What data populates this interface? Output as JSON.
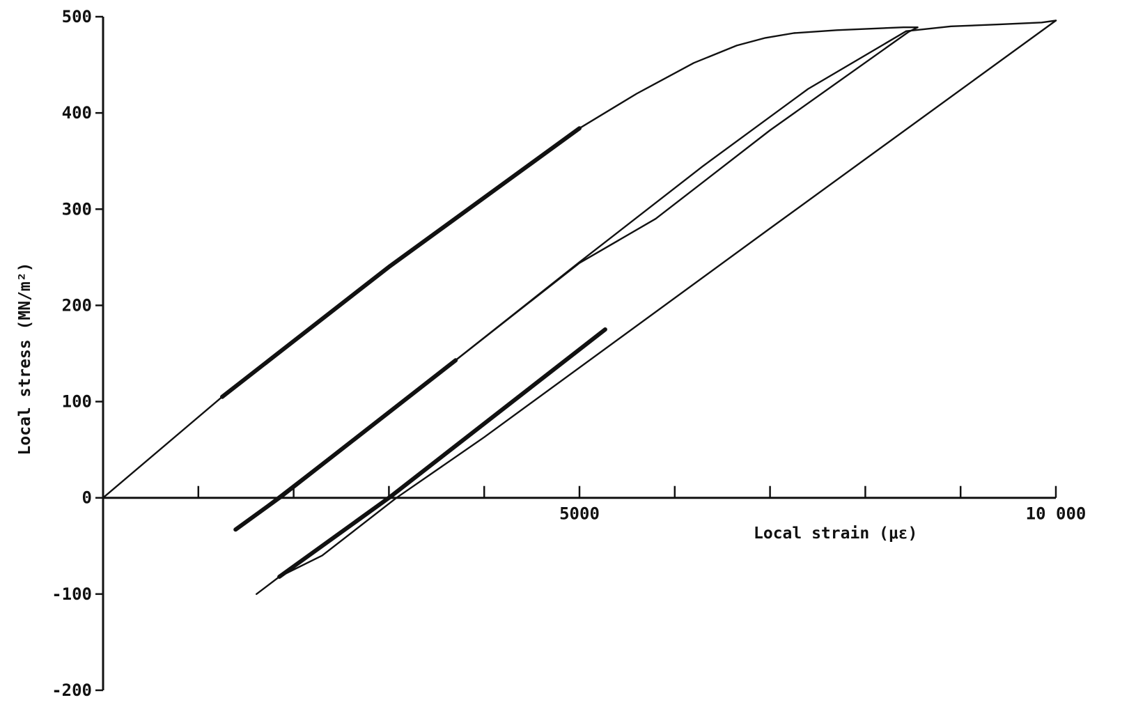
{
  "chart_data": {
    "type": "line",
    "title": "",
    "xlabel": "Local strain (με)",
    "ylabel": "Local stress (MN/m²)",
    "xlim": [
      0,
      10000
    ],
    "ylim": [
      -200,
      500
    ],
    "x_tick_labels": [
      {
        "value": 5000,
        "label": "5000"
      },
      {
        "value": 10000,
        "label": "10 000"
      }
    ],
    "x_minor_ticks": [
      1000,
      2000,
      3000,
      4000,
      5000,
      6000,
      7000,
      8000,
      9000,
      10000
    ],
    "y_tick_labels": [
      {
        "value": 500,
        "label": "500"
      },
      {
        "value": 400,
        "label": "400"
      },
      {
        "value": 300,
        "label": "300"
      },
      {
        "value": 200,
        "label": "200"
      },
      {
        "value": 100,
        "label": "100"
      },
      {
        "value": 0,
        "label": "0"
      },
      {
        "value": -100,
        "label": "-100"
      },
      {
        "value": -200,
        "label": "-200"
      }
    ],
    "grid": false,
    "legend": "none",
    "series": [
      {
        "weight": "thin",
        "x": [
          0,
          1250
        ],
        "y": [
          0,
          105
        ]
      },
      {
        "weight": "heavy",
        "x": [
          1250,
          3000,
          5000
        ],
        "y": [
          105,
          240,
          384
        ]
      },
      {
        "weight": "thin",
        "x": [
          5000,
          5600,
          6200,
          6650,
          6950,
          7250,
          7700,
          8400,
          8550,
          8450
        ],
        "y": [
          384,
          420,
          452,
          470,
          478,
          483,
          486,
          489,
          489,
          484
        ]
      },
      {
        "weight": "thin",
        "x": [
          8450,
          7000,
          5800,
          5000,
          3700
        ],
        "y": [
          484,
          382,
          290,
          244,
          143
        ]
      },
      {
        "weight": "heavy",
        "x": [
          3700,
          1850,
          1390
        ],
        "y": [
          143,
          0,
          -33
        ]
      },
      {
        "weight": "thin",
        "x": [
          1390,
          3700,
          5000,
          6300,
          7400,
          8430
        ],
        "y": [
          -33,
          143,
          245,
          345,
          425,
          485
        ]
      },
      {
        "weight": "thin",
        "x": [
          8430,
          8900,
          9400,
          9850,
          10000
        ],
        "y": [
          485,
          490,
          492,
          494,
          496
        ]
      },
      {
        "weight": "thin",
        "x": [
          10000,
          7000,
          4000,
          3080,
          2300,
          1850
        ],
        "y": [
          496,
          280,
          63,
          0,
          -60,
          -82
        ]
      },
      {
        "weight": "heavy",
        "x": [
          1850,
          3000,
          5270
        ],
        "y": [
          -82,
          0,
          175
        ]
      },
      {
        "weight": "thin",
        "x": [
          1850,
          1610
        ],
        "y": [
          -82,
          -100
        ]
      }
    ]
  }
}
